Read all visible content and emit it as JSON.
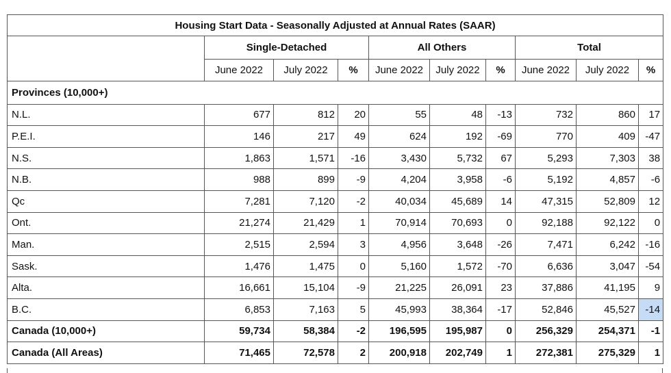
{
  "title": "Housing Start Data - Seasonally Adjusted at Annual Rates (SAAR)",
  "groups": [
    "Single-Detached",
    "All Others",
    "Total"
  ],
  "subheaders": [
    "June 2022",
    "July 2022",
    "%"
  ],
  "section_label": "Provinces (10,000+)",
  "rows": [
    {
      "name": "N.L.",
      "cells": [
        "677",
        "812",
        "20",
        "55",
        "48",
        "-13",
        "732",
        "860",
        "17"
      ]
    },
    {
      "name": "P.E.I.",
      "cells": [
        "146",
        "217",
        "49",
        "624",
        "192",
        "-69",
        "770",
        "409",
        "-47"
      ]
    },
    {
      "name": "N.S.",
      "cells": [
        "1,863",
        "1,571",
        "-16",
        "3,430",
        "5,732",
        "67",
        "5,293",
        "7,303",
        "38"
      ]
    },
    {
      "name": "N.B.",
      "cells": [
        "988",
        "899",
        "-9",
        "4,204",
        "3,958",
        "-6",
        "5,192",
        "4,857",
        "-6"
      ]
    },
    {
      "name": "Qc",
      "cells": [
        "7,281",
        "7,120",
        "-2",
        "40,034",
        "45,689",
        "14",
        "47,315",
        "52,809",
        "12"
      ]
    },
    {
      "name": "Ont.",
      "cells": [
        "21,274",
        "21,429",
        "1",
        "70,914",
        "70,693",
        "0",
        "92,188",
        "92,122",
        "0"
      ]
    },
    {
      "name": "Man.",
      "cells": [
        "2,515",
        "2,594",
        "3",
        "4,956",
        "3,648",
        "-26",
        "7,471",
        "6,242",
        "-16"
      ]
    },
    {
      "name": "Sask.",
      "cells": [
        "1,476",
        "1,475",
        "0",
        "5,160",
        "1,572",
        "-70",
        "6,636",
        "3,047",
        "-54"
      ]
    },
    {
      "name": "Alta.",
      "cells": [
        "16,661",
        "15,104",
        "-9",
        "21,225",
        "26,091",
        "23",
        "37,886",
        "41,195",
        "9"
      ]
    },
    {
      "name": "B.C.",
      "cells": [
        "6,853",
        "7,163",
        "5",
        "45,993",
        "38,364",
        "-17",
        "52,846",
        "45,527",
        "-14"
      ]
    }
  ],
  "totals": [
    {
      "name": "Canada (10,000+)",
      "cells": [
        "59,734",
        "58,384",
        "-2",
        "196,595",
        "195,987",
        "0",
        "256,329",
        "254,371",
        "-1"
      ]
    },
    {
      "name": "Canada (All Areas)",
      "cells": [
        "71,465",
        "72,578",
        "2",
        "200,918",
        "202,749",
        "1",
        "272,381",
        "275,329",
        "1"
      ]
    }
  ],
  "highlighted_cell": "B.C. Total %"
}
